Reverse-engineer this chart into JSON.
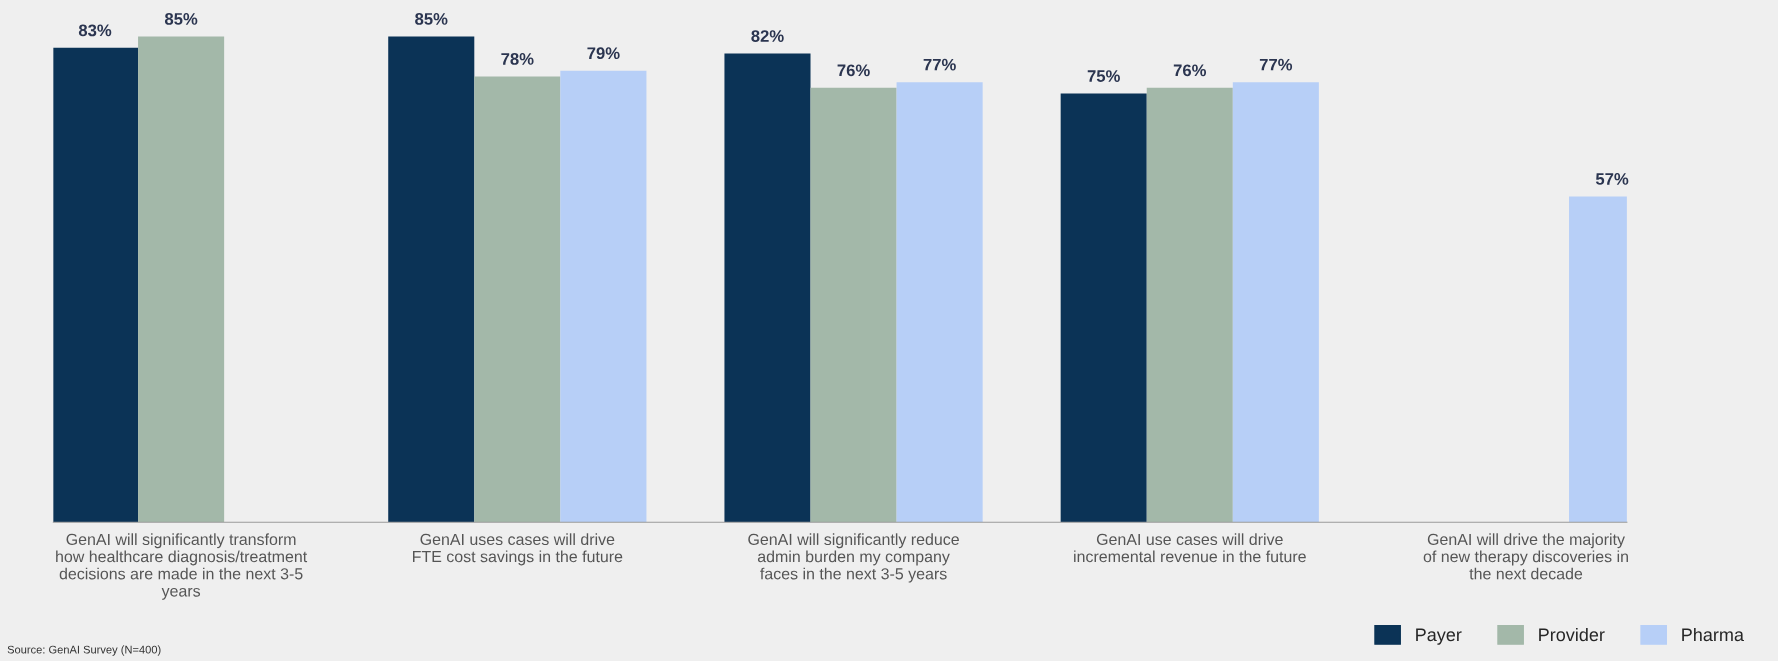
{
  "chart_data": {
    "type": "bar",
    "categories": [
      "GenAI will significantly transform\nhow healthcare diagnosis/treatment\ndecisions are made in the next 3-5\nyears",
      "GenAI uses cases will drive\nFTE cost savings in the future",
      "GenAI will significantly reduce\nadmin burden my company\nfaces in the next 3-5 years",
      "GenAI use cases will drive\nincremental revenue in the future",
      "GenAI will drive the majority\nof new therapy discoveries in\nthe next decade"
    ],
    "series": [
      {
        "name": "Payer",
        "color": "#0b3356",
        "values": [
          83,
          85,
          82,
          75,
          null
        ],
        "value_labels": [
          "83%",
          "85%",
          "82%",
          "75%",
          null
        ]
      },
      {
        "name": "Provider",
        "color": "#a3b8a9",
        "values": [
          85,
          78,
          76,
          76,
          null
        ],
        "value_labels": [
          "85%",
          "78%",
          "76%",
          "76%",
          null
        ]
      },
      {
        "name": "Pharma",
        "color": "#b7cff7",
        "values": [
          null,
          79,
          77,
          77,
          57
        ],
        "value_labels": [
          null,
          "79%",
          "77%",
          "77%",
          "57%"
        ]
      }
    ],
    "grid": false,
    "legend": "bottom right",
    "annotations": [
      "Source: GenAI Survey (N=400)"
    ]
  }
}
